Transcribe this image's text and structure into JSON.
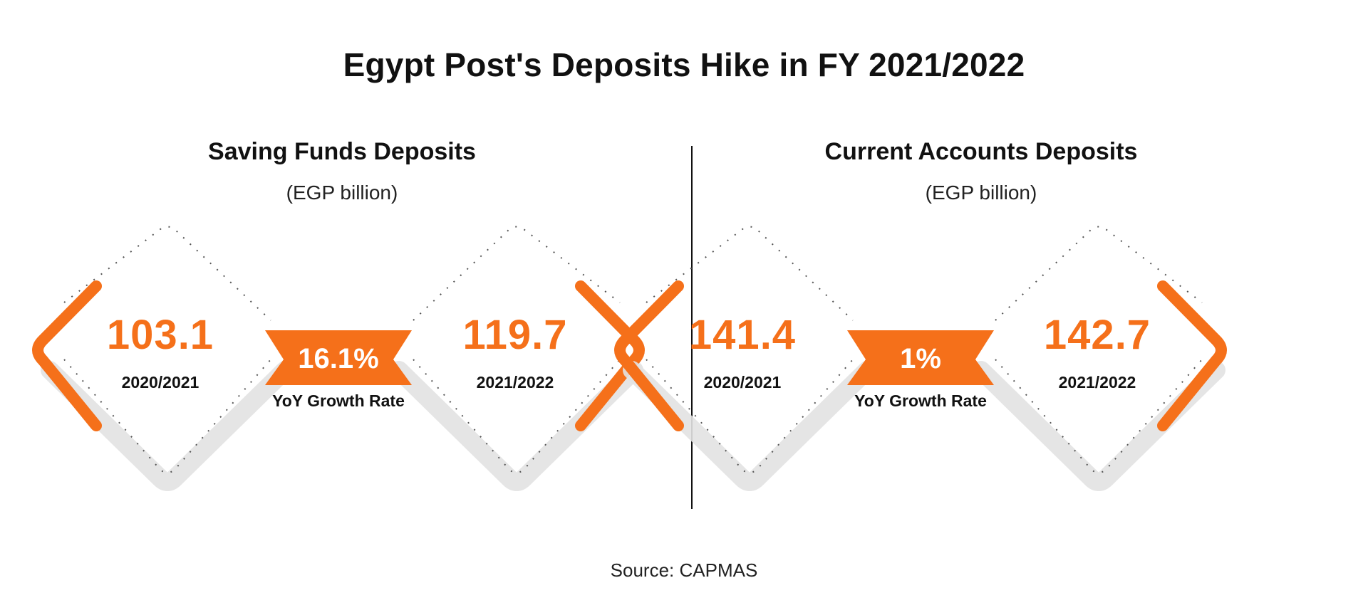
{
  "title": "Egypt Post's Deposits Hike in FY 2021/2022",
  "source": "Source: CAPMAS",
  "colors": {
    "accent": "#f5701a",
    "text": "#111111",
    "shadow": "#d9d9d9"
  },
  "panels": [
    {
      "title": "Saving Funds Deposits",
      "unit": "(EGP billion)",
      "first": {
        "value": "103.1",
        "year": "2020/2021"
      },
      "second": {
        "value": "119.7",
        "year": "2021/2022"
      },
      "growth": {
        "value": "16.1%",
        "label": "YoY Growth Rate"
      }
    },
    {
      "title": "Current Accounts Deposits",
      "unit": "(EGP billion)",
      "first": {
        "value": "141.4",
        "year": "2020/2021"
      },
      "second": {
        "value": "142.7",
        "year": "2021/2022"
      },
      "growth": {
        "value": "1%",
        "label": "YoY Growth Rate"
      }
    }
  ]
}
